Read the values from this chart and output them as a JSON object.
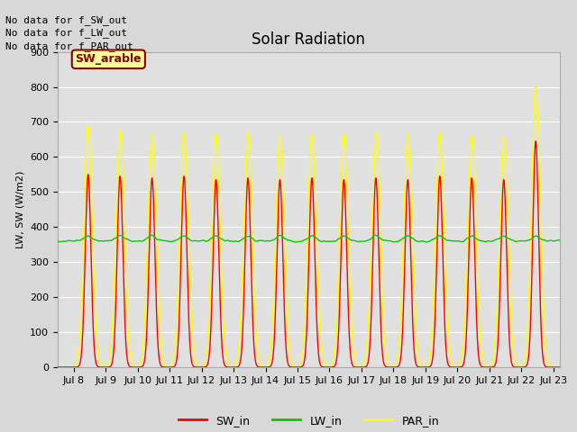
{
  "title": "Solar Radiation",
  "ylabel": "LW, SW (W/m2)",
  "ylim": [
    0,
    900
  ],
  "xlim": [
    7.5,
    23.2
  ],
  "x_tick_labels": [
    "Jul 8",
    "Jul 9",
    "Jul 10",
    "Jul 11",
    "Jul 12",
    "Jul 13",
    "Jul 14",
    "Jul 15",
    "Jul 16",
    "Jul 17",
    "Jul 18",
    "Jul 19",
    "Jul 20",
    "Jul 21",
    "Jul 22",
    "Jul 23"
  ],
  "x_tick_positions": [
    8,
    9,
    10,
    11,
    12,
    13,
    14,
    15,
    16,
    17,
    18,
    19,
    20,
    21,
    22,
    23
  ],
  "background_color": "#d8d8d8",
  "plot_bg_color": "#e0e0e0",
  "grid_color": "#ffffff",
  "sw_color": "#ff0000",
  "lw_color": "#00cc00",
  "par_color": "#ffff00",
  "no_data_texts": [
    "No data for f_SW_out",
    "No data for f_LW_out",
    "No data for f_PAR_out"
  ],
  "annotation_box_text": "SW_arable",
  "annotation_box_color": "#ffff99",
  "annotation_box_border": "#8B0000",
  "annotation_text_color": "#8B0000",
  "title_fontsize": 12,
  "axis_fontsize": 8,
  "legend_fontsize": 9,
  "nodata_fontsize": 8,
  "lw_base": 360,
  "lw_range": [
    330,
    390
  ],
  "sw_peaks": [
    550,
    545,
    540,
    545,
    535,
    540,
    535,
    540,
    535,
    540,
    535,
    545,
    540,
    535,
    645
  ],
  "par_peaks": [
    690,
    675,
    665,
    670,
    665,
    670,
    660,
    665,
    665,
    670,
    665,
    670,
    660,
    655,
    800
  ],
  "sigma_par": 0.13,
  "sigma_sw": 0.09
}
